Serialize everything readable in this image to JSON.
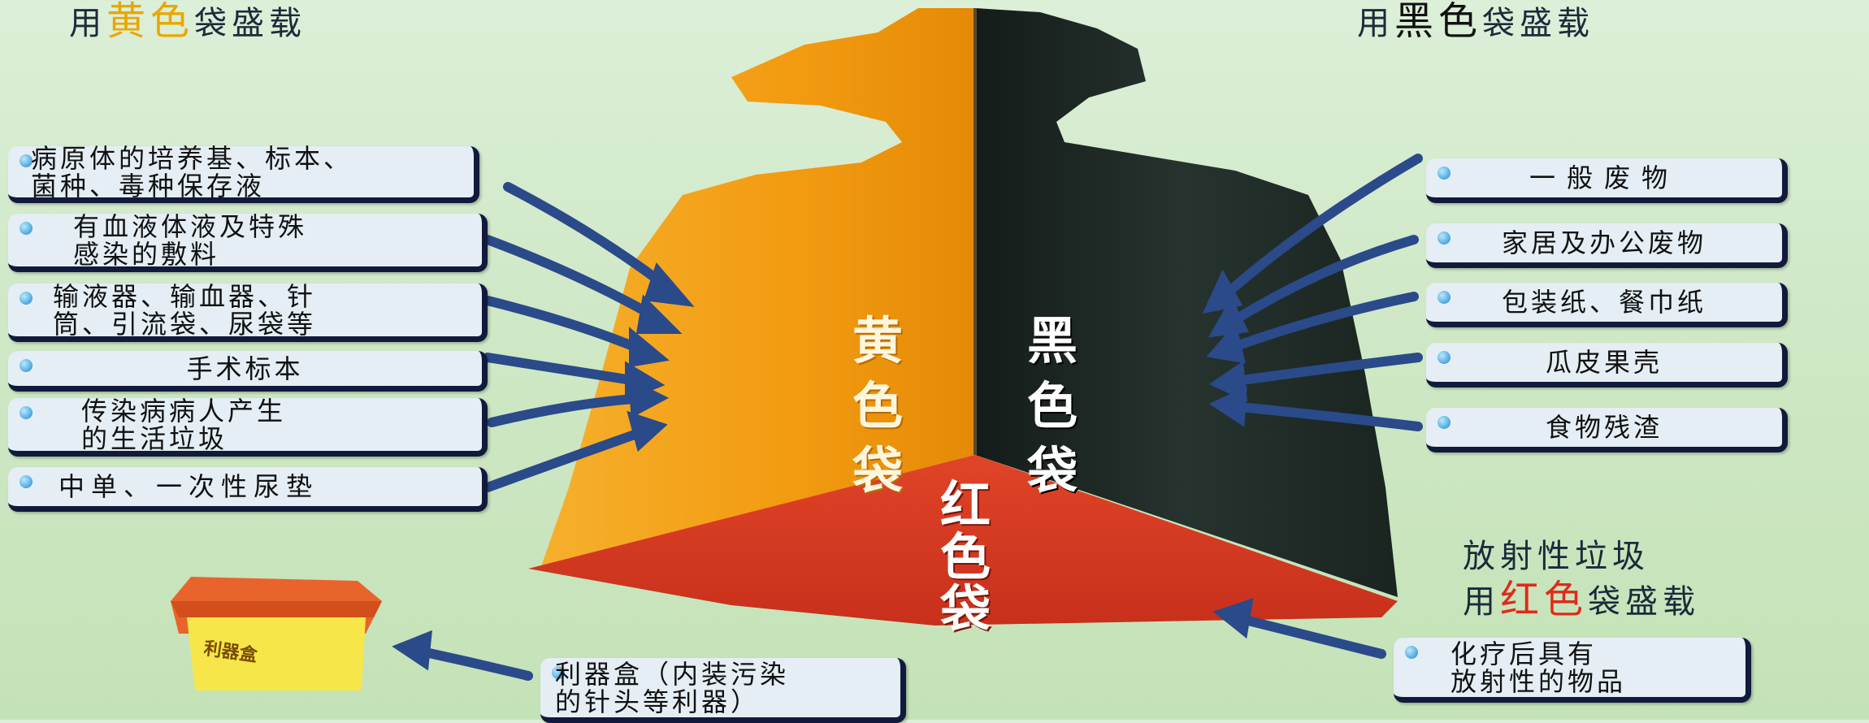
{
  "headings": {
    "yellow": {
      "prefix": "用",
      "highlight": "黄色",
      "suffix": "袋盛载"
    },
    "black": {
      "prefix": "用",
      "highlight": "黑色",
      "suffix": "袋盛载"
    },
    "red_line1": "放射性垃圾",
    "red_line2": {
      "prefix": "用",
      "highlight": "红色",
      "suffix": "袋盛载"
    }
  },
  "bag_labels": {
    "yellow": [
      "黄",
      "色",
      "袋"
    ],
    "black": [
      "黑",
      "色",
      "袋"
    ],
    "red": [
      "红",
      "色",
      "袋"
    ]
  },
  "yellow_items": [
    "病原体的培养基、标本、\n菌种、毒种保存液",
    "有血液体液及特殊\n感染的敷料",
    "输液器、输血器、针\n筒、引流袋、尿袋等",
    "手术标本",
    "传染病病人产生\n的生活垃圾",
    "中单、一次性尿垫"
  ],
  "black_items": [
    "一般废物",
    "家居及办公废物",
    "包装纸、餐巾纸",
    "瓜皮果壳",
    "食物残渣"
  ],
  "red_item": "化疗后具有\n放射性的物品",
  "sharps": {
    "box_label": "利器盒",
    "item": "利器盒（内装污染\n的针头等利器）"
  },
  "colors": {
    "yellow": "#f29a10",
    "black": "#1c2622",
    "red": "#d83a22",
    "arrow": "#2a4a8a"
  }
}
